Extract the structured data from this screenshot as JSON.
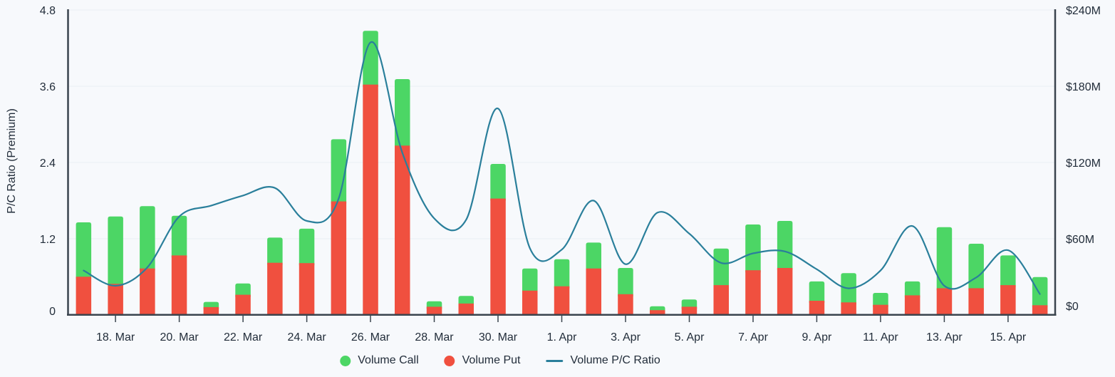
{
  "chart_data": {
    "type": "bar",
    "subtype": "stacked-bar-with-line",
    "title": "",
    "categories": [
      "17. Mar",
      "18. Mar",
      "19. Mar",
      "20. Mar",
      "21. Mar",
      "22. Mar",
      "23. Mar",
      "24. Mar",
      "25. Mar",
      "26. Mar",
      "27. Mar",
      "28. Mar",
      "29. Mar",
      "30. Mar",
      "31. Mar",
      "1. Apr",
      "2. Apr",
      "3. Apr",
      "4. Apr",
      "5. Apr",
      "6. Apr",
      "7. Apr",
      "8. Apr",
      "9. Apr",
      "10. Apr",
      "11. Apr",
      "12. Apr",
      "13. Apr",
      "14. Apr",
      "15. Apr",
      "16. Apr"
    ],
    "series": [
      {
        "name": "Volume Call",
        "type": "bar",
        "stack": "volume",
        "axis": "right",
        "unit": "$M",
        "color": "#4cd665",
        "values": [
          42.8,
          53.0,
          49.0,
          31.2,
          4.1,
          8.9,
          19.8,
          27.1,
          48.9,
          42.3,
          52.3,
          4.3,
          6.0,
          27.3,
          17.4,
          21.3,
          20.4,
          20.6,
          3.1,
          5.7,
          28.8,
          36.0,
          37.0,
          15.2,
          23.0,
          9.4,
          10.9,
          48.0,
          35.0,
          23.4,
          22.2
        ]
      },
      {
        "name": "Volume Put",
        "type": "bar",
        "stack": "volume",
        "axis": "right",
        "unit": "$M",
        "color": "#f0503f",
        "values": [
          30.1,
          24.5,
          36.6,
          46.9,
          6.2,
          15.9,
          41.1,
          40.8,
          89.4,
          181.3,
          133.3,
          6.5,
          9.0,
          91.6,
          19.2,
          22.6,
          36.6,
          16.4,
          3.8,
          6.5,
          23.5,
          35.2,
          37.0,
          11.2,
          9.9,
          8.0,
          15.5,
          21.1,
          21.1,
          23.5,
          7.7
        ]
      },
      {
        "name": "Volume P/C Ratio",
        "type": "line",
        "axis": "left",
        "color": "#2a7f9b",
        "values": [
          0.7,
          0.46,
          0.75,
          1.55,
          1.72,
          1.88,
          2.0,
          1.48,
          1.83,
          4.29,
          2.55,
          1.52,
          1.5,
          3.25,
          1.05,
          1.03,
          1.8,
          0.8,
          1.61,
          1.28,
          0.82,
          0.97,
          1.0,
          0.72,
          0.42,
          0.7,
          1.4,
          0.46,
          0.59,
          1.02,
          0.33
        ]
      }
    ],
    "left_axis": {
      "title": "P/C Ratio (Premium)",
      "min": 0,
      "max": 4.8,
      "tick_labels": [
        "0",
        "1.2",
        "2.4",
        "3.6",
        "4.8"
      ],
      "tick_values": [
        0,
        1.2,
        2.4,
        3.6,
        4.8
      ]
    },
    "right_axis": {
      "min": 0,
      "max": 240,
      "tick_labels": [
        "$0",
        "$60M",
        "$120M",
        "$180M",
        "$240M"
      ],
      "tick_values": [
        0,
        60,
        120,
        180,
        240
      ]
    },
    "x_axis": {
      "labeled_every": 2,
      "first_labeled_index": 1,
      "visible_tick_labels": [
        "18. Mar",
        "20. Mar",
        "22. Mar",
        "24. Mar",
        "26. Mar",
        "28. Mar",
        "30. Mar",
        "1. Apr",
        "3. Apr",
        "5. Apr",
        "7. Apr",
        "9. Apr",
        "11. Apr",
        "13. Apr",
        "15. Apr"
      ]
    },
    "legend": {
      "position": "bottom",
      "items": [
        "Volume Call",
        "Volume Put",
        "Volume P/C Ratio"
      ]
    },
    "grid": true
  },
  "colors": {
    "background": "#f7f9fc",
    "gridline": "#e9eef5",
    "axis_line": "#3a444e",
    "text": "#222d3a",
    "call_green": "#4cd665",
    "put_red": "#f0503f",
    "ratio_teal": "#2a7f9b"
  }
}
